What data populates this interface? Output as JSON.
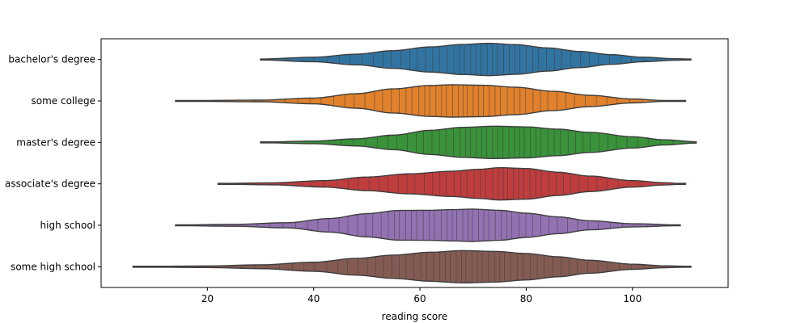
{
  "chart_data": {
    "type": "violin",
    "orientation": "horizontal",
    "inner": "stick",
    "xlabel": "reading score",
    "ylabel": "",
    "title": "",
    "x_ticks": [
      20,
      40,
      60,
      80,
      100
    ],
    "x_tick_labels": [
      "20",
      "40",
      "60",
      "80",
      "100"
    ],
    "xlim": [
      0,
      118
    ],
    "grid": false,
    "categories": [
      "bachelor's degree",
      "some college",
      "master's degree",
      "associate's degree",
      "high school",
      "some high school"
    ],
    "series": [
      {
        "category": "bachelor's degree",
        "color": "#3274a1",
        "range": [
          30,
          111
        ],
        "peak": 73,
        "density": [
          [
            30,
            0.03
          ],
          [
            40,
            0.14
          ],
          [
            48,
            0.33
          ],
          [
            55,
            0.55
          ],
          [
            62,
            0.78
          ],
          [
            68,
            0.93
          ],
          [
            73,
            1.0
          ],
          [
            78,
            0.92
          ],
          [
            84,
            0.72
          ],
          [
            90,
            0.5
          ],
          [
            96,
            0.3
          ],
          [
            102,
            0.14
          ],
          [
            108,
            0.05
          ],
          [
            111,
            0.02
          ]
        ]
      },
      {
        "category": "some college",
        "color": "#e1812c",
        "range": [
          14,
          110
        ],
        "peak": 66,
        "density": [
          [
            14,
            0.02
          ],
          [
            30,
            0.05
          ],
          [
            40,
            0.18
          ],
          [
            48,
            0.45
          ],
          [
            55,
            0.75
          ],
          [
            62,
            0.96
          ],
          [
            66,
            1.0
          ],
          [
            72,
            0.97
          ],
          [
            78,
            0.85
          ],
          [
            85,
            0.6
          ],
          [
            92,
            0.35
          ],
          [
            100,
            0.12
          ],
          [
            106,
            0.03
          ],
          [
            110,
            0.01
          ]
        ]
      },
      {
        "category": "master's degree",
        "color": "#3a923a",
        "range": [
          30,
          112
        ],
        "peak": 76,
        "density": [
          [
            30,
            0.02
          ],
          [
            40,
            0.08
          ],
          [
            48,
            0.22
          ],
          [
            55,
            0.45
          ],
          [
            62,
            0.75
          ],
          [
            68,
            0.93
          ],
          [
            74,
            1.0
          ],
          [
            80,
            0.96
          ],
          [
            86,
            0.82
          ],
          [
            92,
            0.62
          ],
          [
            100,
            0.35
          ],
          [
            106,
            0.16
          ],
          [
            112,
            0.04
          ]
        ]
      },
      {
        "category": "associate's degree",
        "color": "#c03d3e",
        "range": [
          22,
          110
        ],
        "peak": 75,
        "density": [
          [
            22,
            0.02
          ],
          [
            32,
            0.06
          ],
          [
            42,
            0.2
          ],
          [
            50,
            0.42
          ],
          [
            58,
            0.62
          ],
          [
            66,
            0.78
          ],
          [
            71,
            0.9
          ],
          [
            75,
            1.0
          ],
          [
            80,
            0.95
          ],
          [
            86,
            0.72
          ],
          [
            92,
            0.48
          ],
          [
            100,
            0.2
          ],
          [
            106,
            0.07
          ],
          [
            110,
            0.01
          ]
        ]
      },
      {
        "category": "high school",
        "color": "#9372b2",
        "range": [
          14,
          109
        ],
        "peak": 70,
        "density": [
          [
            14,
            0.02
          ],
          [
            25,
            0.06
          ],
          [
            35,
            0.16
          ],
          [
            43,
            0.42
          ],
          [
            50,
            0.72
          ],
          [
            56,
            0.92
          ],
          [
            62,
            0.93
          ],
          [
            66,
            0.97
          ],
          [
            70,
            1.0
          ],
          [
            75,
            0.93
          ],
          [
            80,
            0.75
          ],
          [
            86,
            0.52
          ],
          [
            92,
            0.28
          ],
          [
            100,
            0.1
          ],
          [
            109,
            0.02
          ]
        ]
      },
      {
        "category": "some high school",
        "color": "#845b53",
        "range": [
          6,
          111
        ],
        "peak": 68,
        "density": [
          [
            6,
            0.01
          ],
          [
            20,
            0.05
          ],
          [
            30,
            0.12
          ],
          [
            40,
            0.28
          ],
          [
            48,
            0.52
          ],
          [
            55,
            0.72
          ],
          [
            62,
            0.9
          ],
          [
            68,
            1.0
          ],
          [
            74,
            0.95
          ],
          [
            80,
            0.82
          ],
          [
            86,
            0.62
          ],
          [
            92,
            0.4
          ],
          [
            100,
            0.16
          ],
          [
            106,
            0.06
          ],
          [
            111,
            0.02
          ]
        ]
      }
    ]
  }
}
